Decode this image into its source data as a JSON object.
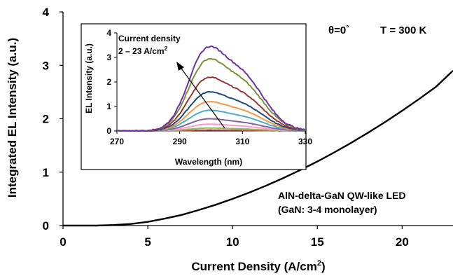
{
  "chart_data": [
    {
      "type": "line",
      "xlabel": "Current Density (A/cm",
      "xlabel_sup": "2",
      "xlabel_end": ")",
      "ylabel": "Integrated EL Intensity (a.u.)",
      "xlim": [
        0,
        23
      ],
      "ylim": [
        0,
        4
      ],
      "xticks": [
        0,
        5,
        10,
        15,
        20
      ],
      "yticks": [
        0,
        1,
        2,
        3,
        4
      ],
      "grid": false,
      "annotations": {
        "angle": "θ=0",
        "angle_deg": "°",
        "temperature": "T = 300 K",
        "device": "AlN-delta-GaN QW-like LED",
        "device_detail": "(GaN: 3-4 monolayer)"
      },
      "series": [
        {
          "x": [
            0,
            1,
            2,
            3,
            4,
            5,
            6,
            7,
            8,
            9,
            10,
            11,
            12,
            13,
            14,
            15,
            16,
            17,
            18,
            19,
            20,
            21,
            22,
            23
          ],
          "y": [
            0,
            0.0,
            0.0,
            0.01,
            0.03,
            0.07,
            0.13,
            0.2,
            0.29,
            0.39,
            0.5,
            0.62,
            0.75,
            0.89,
            1.04,
            1.2,
            1.37,
            1.55,
            1.74,
            1.94,
            2.15,
            2.37,
            2.6,
            2.9
          ],
          "color": "#000000"
        }
      ]
    },
    {
      "type": "line",
      "xlabel": "Wavelength (nm)",
      "ylabel": "EL Intensity (a.u.)",
      "xlim": [
        270,
        330
      ],
      "ylim": [
        0,
        4
      ],
      "xticks": [
        270,
        290,
        310,
        330
      ],
      "yticks": [
        0,
        1,
        2,
        3,
        4
      ],
      "annotation": "Current density",
      "annotation_range": "2 – 23 A/cm",
      "annotation_sup": "2",
      "series": [
        {
          "peak": 3.45,
          "color": "#7030a0"
        },
        {
          "peak": 2.95,
          "color": "#77933c"
        },
        {
          "peak": 2.2,
          "color": "#953735"
        },
        {
          "peak": 1.6,
          "color": "#1f497d"
        },
        {
          "peak": 1.2,
          "color": "#f79646"
        },
        {
          "peak": 0.85,
          "color": "#4bacc6"
        },
        {
          "peak": 0.5,
          "color": "#8064a2"
        },
        {
          "peak": 0.28,
          "color": "#ff99cc"
        },
        {
          "peak": 0.12,
          "color": "#9bbb59"
        },
        {
          "peak": 0.04,
          "color": "#c0504d"
        }
      ]
    }
  ]
}
